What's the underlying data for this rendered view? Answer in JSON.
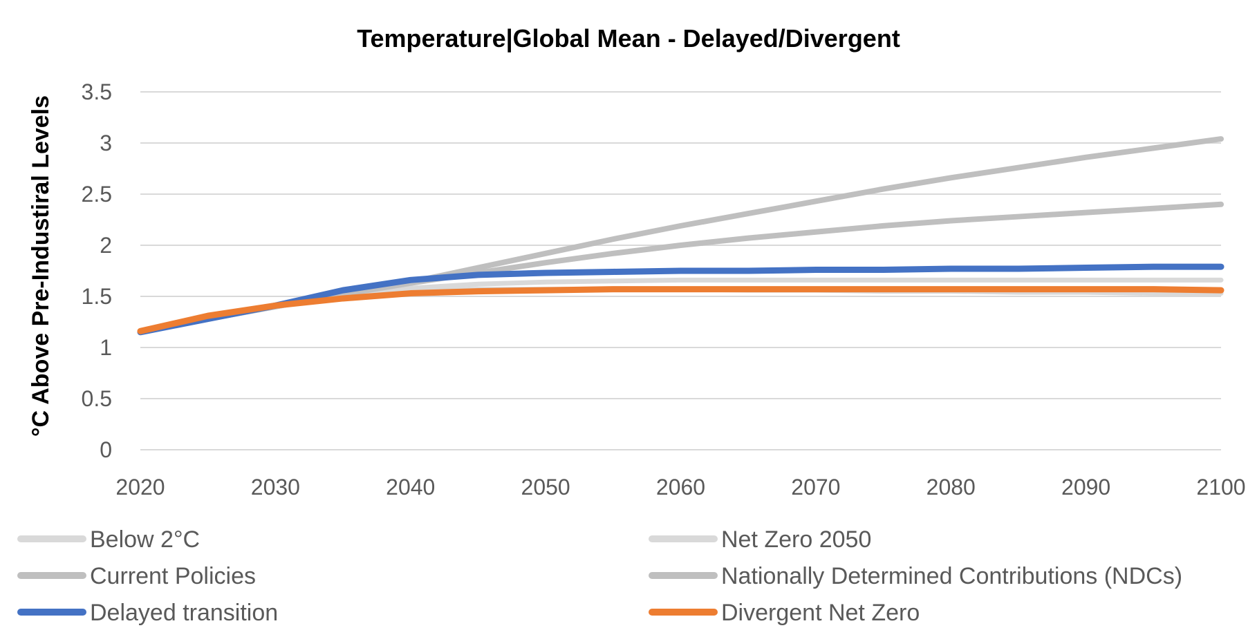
{
  "chart_data": {
    "type": "line",
    "title": "Temperature|Global Mean - Delayed/Divergent",
    "xlabel": "",
    "ylabel": "°C Above Pre-Industiral Levels",
    "xlim": [
      2020,
      2100
    ],
    "ylim": [
      0,
      3.5
    ],
    "x_ticks": [
      "2020",
      "2030",
      "2040",
      "2050",
      "2060",
      "2070",
      "2080",
      "2090",
      "2100"
    ],
    "y_ticks": [
      "0",
      "0.5",
      "1",
      "1.5",
      "2",
      "2.5",
      "3",
      "3.5"
    ],
    "grid": "horizontal",
    "legend_position": "bottom",
    "x": [
      2020,
      2025,
      2030,
      2035,
      2040,
      2045,
      2050,
      2055,
      2060,
      2065,
      2070,
      2075,
      2080,
      2085,
      2090,
      2095,
      2100
    ],
    "series": [
      {
        "name": "Below 2°C",
        "color": "#d9d9d9",
        "values": [
          1.15,
          1.28,
          1.4,
          1.52,
          1.58,
          1.62,
          1.64,
          1.65,
          1.66,
          1.66,
          1.66,
          1.66,
          1.66,
          1.66,
          1.66,
          1.66,
          1.66
        ]
      },
      {
        "name": "Net Zero 2050",
        "color": "#d9d9d9",
        "values": [
          1.15,
          1.28,
          1.4,
          1.5,
          1.55,
          1.57,
          1.57,
          1.57,
          1.57,
          1.56,
          1.56,
          1.55,
          1.55,
          1.54,
          1.54,
          1.53,
          1.53
        ]
      },
      {
        "name": "Current Policies",
        "color": "#bfbfbf",
        "values": [
          1.15,
          1.28,
          1.4,
          1.52,
          1.64,
          1.78,
          1.92,
          2.06,
          2.19,
          2.31,
          2.43,
          2.55,
          2.66,
          2.76,
          2.86,
          2.95,
          3.04
        ]
      },
      {
        "name": "Nationally Determined Contributions (NDCs)",
        "color": "#bfbfbf",
        "values": [
          1.15,
          1.28,
          1.4,
          1.52,
          1.63,
          1.73,
          1.83,
          1.92,
          2.0,
          2.07,
          2.13,
          2.19,
          2.24,
          2.28,
          2.32,
          2.36,
          2.4
        ]
      },
      {
        "name": "Delayed transition",
        "color": "#4472c4",
        "values": [
          1.15,
          1.28,
          1.41,
          1.56,
          1.66,
          1.71,
          1.73,
          1.74,
          1.75,
          1.75,
          1.76,
          1.76,
          1.77,
          1.77,
          1.78,
          1.79,
          1.79
        ]
      },
      {
        "name": "Divergent Net Zero",
        "color": "#ed7d31",
        "values": [
          1.16,
          1.31,
          1.41,
          1.48,
          1.53,
          1.55,
          1.56,
          1.57,
          1.57,
          1.57,
          1.57,
          1.57,
          1.57,
          1.57,
          1.57,
          1.57,
          1.56
        ]
      }
    ]
  }
}
